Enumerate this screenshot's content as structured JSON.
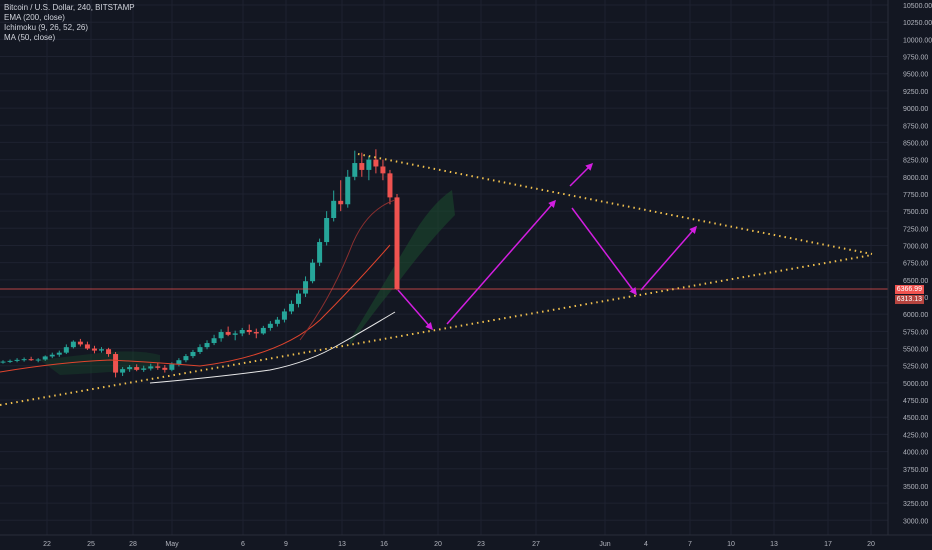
{
  "legend": {
    "title": "Bitcoin / U.S. Dollar, 240, BITSTAMP",
    "ema": "EMA (200, close)",
    "ichimoku": "Ichimoku (9, 26, 52, 26)",
    "ma": "MA (50, close)"
  },
  "badges": {
    "last_price": "6366.99",
    "second": "6313.13"
  },
  "colors": {
    "background": "#131722",
    "grid": "#1e2230",
    "axis_text": "#b2b5be",
    "candle_up": "#26a69a",
    "candle_down": "#ef5350",
    "ema": "#e0442d",
    "ma": "#e8e8e8",
    "trendline": "#f2c14e",
    "arrow": "#d21ee0",
    "cloud": "#1b4d2e",
    "price_line": "#ef5350"
  },
  "chart_data": {
    "type": "candlestick",
    "y_ticks": [
      3000,
      3250,
      3500,
      3750,
      4000,
      4250,
      4500,
      4750,
      5000,
      5250,
      5500,
      5750,
      6000,
      6250,
      6500,
      6750,
      7000,
      7250,
      7500,
      7750,
      8000,
      8250,
      8500,
      8750,
      9000,
      9250,
      9500,
      9750,
      10000,
      10250,
      10500
    ],
    "y_tick_labels": [
      "3000.00",
      "3250.00",
      "3500.00",
      "3750.00",
      "4000.00",
      "4250.00",
      "4500.00",
      "4750.00",
      "5000.00",
      "5250.00",
      "5500.00",
      "5750.00",
      "6000.00",
      "6250.00",
      "6500.00",
      "6750.00",
      "7000.00",
      "7250.00",
      "7500.00",
      "7750.00",
      "8000.00",
      "8250.00",
      "8500.00",
      "8750.00",
      "9000.00",
      "9250.00",
      "9500.00",
      "9750.00",
      "10000.00",
      "10250.00",
      "10500.00"
    ],
    "x_labels": [
      "22",
      "25",
      "28",
      "May",
      "6",
      "9",
      "13",
      "16",
      "20",
      "23",
      "27",
      "Jun",
      "4",
      "7",
      "10",
      "13",
      "17",
      "20"
    ],
    "ylim": [
      2900,
      10550
    ],
    "last_price": 6366.99,
    "ohlc": [
      [
        5300,
        5330,
        5280,
        5310
      ],
      [
        5310,
        5340,
        5290,
        5320
      ],
      [
        5320,
        5360,
        5300,
        5335
      ],
      [
        5335,
        5370,
        5310,
        5345
      ],
      [
        5345,
        5380,
        5320,
        5330
      ],
      [
        5330,
        5360,
        5300,
        5340
      ],
      [
        5340,
        5400,
        5320,
        5385
      ],
      [
        5385,
        5440,
        5360,
        5410
      ],
      [
        5410,
        5470,
        5380,
        5440
      ],
      [
        5440,
        5560,
        5420,
        5520
      ],
      [
        5520,
        5620,
        5500,
        5600
      ],
      [
        5600,
        5640,
        5530,
        5560
      ],
      [
        5560,
        5600,
        5480,
        5500
      ],
      [
        5500,
        5540,
        5430,
        5470
      ],
      [
        5470,
        5520,
        5440,
        5490
      ],
      [
        5490,
        5510,
        5380,
        5420
      ],
      [
        5420,
        5450,
        5080,
        5150
      ],
      [
        5150,
        5230,
        5100,
        5200
      ],
      [
        5200,
        5260,
        5160,
        5230
      ],
      [
        5230,
        5270,
        5170,
        5190
      ],
      [
        5190,
        5250,
        5160,
        5210
      ],
      [
        5210,
        5280,
        5180,
        5240
      ],
      [
        5240,
        5290,
        5190,
        5220
      ],
      [
        5220,
        5260,
        5150,
        5190
      ],
      [
        5190,
        5300,
        5170,
        5270
      ],
      [
        5270,
        5360,
        5240,
        5330
      ],
      [
        5330,
        5420,
        5300,
        5390
      ],
      [
        5390,
        5480,
        5360,
        5450
      ],
      [
        5450,
        5560,
        5420,
        5520
      ],
      [
        5520,
        5620,
        5490,
        5580
      ],
      [
        5580,
        5700,
        5550,
        5650
      ],
      [
        5650,
        5780,
        5600,
        5740
      ],
      [
        5740,
        5820,
        5680,
        5700
      ],
      [
        5700,
        5760,
        5620,
        5720
      ],
      [
        5720,
        5800,
        5680,
        5770
      ],
      [
        5770,
        5850,
        5700,
        5740
      ],
      [
        5740,
        5790,
        5650,
        5720
      ],
      [
        5720,
        5830,
        5700,
        5800
      ],
      [
        5800,
        5900,
        5760,
        5860
      ],
      [
        5860,
        5960,
        5820,
        5920
      ],
      [
        5920,
        6080,
        5880,
        6040
      ],
      [
        6040,
        6200,
        6000,
        6150
      ],
      [
        6150,
        6350,
        6100,
        6300
      ],
      [
        6300,
        6550,
        6250,
        6480
      ],
      [
        6480,
        6800,
        6450,
        6750
      ],
      [
        6750,
        7100,
        6700,
        7050
      ],
      [
        7050,
        7500,
        7000,
        7400
      ],
      [
        7400,
        7800,
        7350,
        7650
      ],
      [
        7650,
        7950,
        7500,
        7600
      ],
      [
        7600,
        8100,
        7550,
        8000
      ],
      [
        8000,
        8380,
        7950,
        8200
      ],
      [
        8200,
        8350,
        8000,
        8100
      ],
      [
        8100,
        8300,
        7950,
        8250
      ],
      [
        8250,
        8400,
        8050,
        8150
      ],
      [
        8150,
        8250,
        7950,
        8050
      ],
      [
        8050,
        8100,
        7600,
        7700
      ],
      [
        7700,
        7750,
        6350,
        6367
      ]
    ]
  },
  "annotations": {
    "trendline_upper": {
      "from": [
        "13",
        8360
      ],
      "to": [
        "20",
        6920
      ]
    },
    "trendline_lower": {
      "from": [
        "start",
        4680
      ],
      "to": [
        "20",
        6900
      ]
    }
  }
}
